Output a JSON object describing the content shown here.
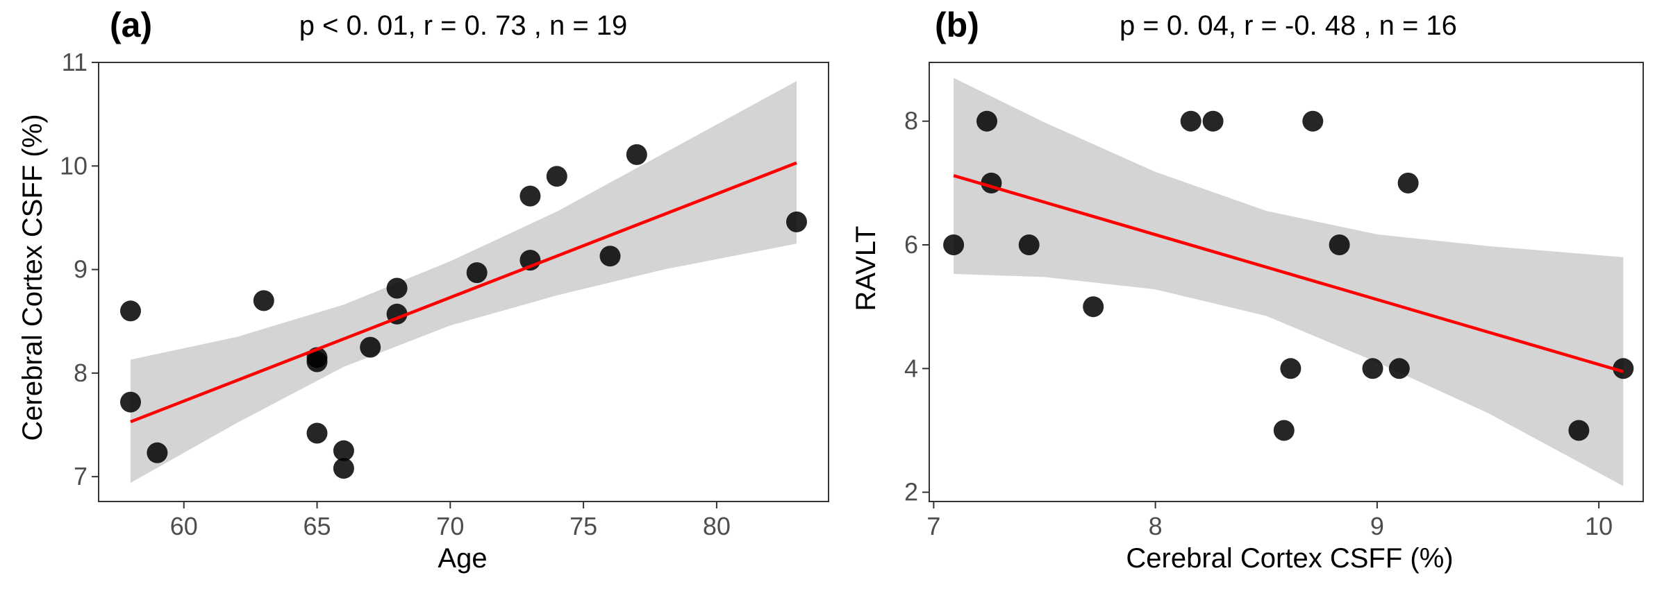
{
  "colors": {
    "band": "#d4d4d4",
    "fit_line": "#ff0000",
    "point": "#000000",
    "axis": "#333333",
    "tick_text": "#4d4d4d"
  },
  "chart_data": [
    {
      "type": "scatter",
      "panel_label": "(b)",
      "title": "p = 0. 04, r = -0. 48 , n = 16",
      "xlabel": "Cerebral Cortex CSFF (%)",
      "ylabel": "RAVLT",
      "xlim": [
        6.98,
        10.2
      ],
      "ylim": [
        1.85,
        8.95
      ],
      "xticks": [
        7,
        8,
        9,
        10
      ],
      "yticks": [
        2,
        4,
        6,
        8
      ],
      "points": [
        {
          "x": 7.09,
          "y": 6
        },
        {
          "x": 7.24,
          "y": 8
        },
        {
          "x": 7.26,
          "y": 7
        },
        {
          "x": 7.43,
          "y": 6
        },
        {
          "x": 7.72,
          "y": 5
        },
        {
          "x": 8.16,
          "y": 8
        },
        {
          "x": 8.26,
          "y": 8
        },
        {
          "x": 8.58,
          "y": 3
        },
        {
          "x": 8.61,
          "y": 4
        },
        {
          "x": 8.71,
          "y": 8
        },
        {
          "x": 8.83,
          "y": 6
        },
        {
          "x": 8.98,
          "y": 4
        },
        {
          "x": 9.1,
          "y": 4
        },
        {
          "x": 9.14,
          "y": 7
        },
        {
          "x": 9.91,
          "y": 3
        },
        {
          "x": 10.11,
          "y": 4
        }
      ],
      "fit": {
        "x": [
          7.09,
          10.11
        ],
        "y": [
          7.12,
          3.95
        ]
      },
      "band": {
        "x": [
          7.09,
          7.5,
          8.0,
          8.5,
          9.0,
          9.5,
          10.11
        ],
        "upper": [
          8.7,
          7.98,
          7.18,
          6.55,
          6.17,
          5.98,
          5.8
        ],
        "lower": [
          5.53,
          5.48,
          5.28,
          4.85,
          4.1,
          3.28,
          2.1
        ]
      }
    },
    {
      "type": "scatter",
      "panel_label": "(a)",
      "title": "p < 0. 01, r = 0. 73 , n = 19",
      "xlabel": "Age",
      "ylabel": "Cerebral Cortex CSFF (%)",
      "xlim": [
        56.8,
        84.2
      ],
      "ylim": [
        6.76,
        11.0
      ],
      "xticks": [
        60,
        65,
        70,
        75,
        80
      ],
      "yticks": [
        7,
        8,
        9,
        10,
        11
      ],
      "points": [
        {
          "x": 58,
          "y": 8.6
        },
        {
          "x": 58,
          "y": 7.72
        },
        {
          "x": 59,
          "y": 7.23
        },
        {
          "x": 63,
          "y": 8.7
        },
        {
          "x": 65,
          "y": 8.15
        },
        {
          "x": 65,
          "y": 8.11
        },
        {
          "x": 65,
          "y": 7.42
        },
        {
          "x": 66,
          "y": 7.25
        },
        {
          "x": 66,
          "y": 7.08
        },
        {
          "x": 67,
          "y": 8.25
        },
        {
          "x": 68,
          "y": 8.82
        },
        {
          "x": 68,
          "y": 8.57
        },
        {
          "x": 71,
          "y": 8.97
        },
        {
          "x": 73,
          "y": 9.71
        },
        {
          "x": 73,
          "y": 9.09
        },
        {
          "x": 74,
          "y": 9.9
        },
        {
          "x": 76,
          "y": 9.13
        },
        {
          "x": 77,
          "y": 10.11
        },
        {
          "x": 83,
          "y": 9.46
        }
      ],
      "fit": {
        "x": [
          58,
          83
        ],
        "y": [
          7.53,
          10.03
        ]
      },
      "band": {
        "x": [
          58,
          62,
          66,
          70,
          74,
          78,
          83
        ],
        "upper": [
          8.13,
          8.35,
          8.66,
          9.08,
          9.56,
          10.12,
          10.82
        ],
        "lower": [
          6.94,
          7.52,
          8.06,
          8.46,
          8.75,
          9.0,
          9.25
        ]
      }
    }
  ]
}
